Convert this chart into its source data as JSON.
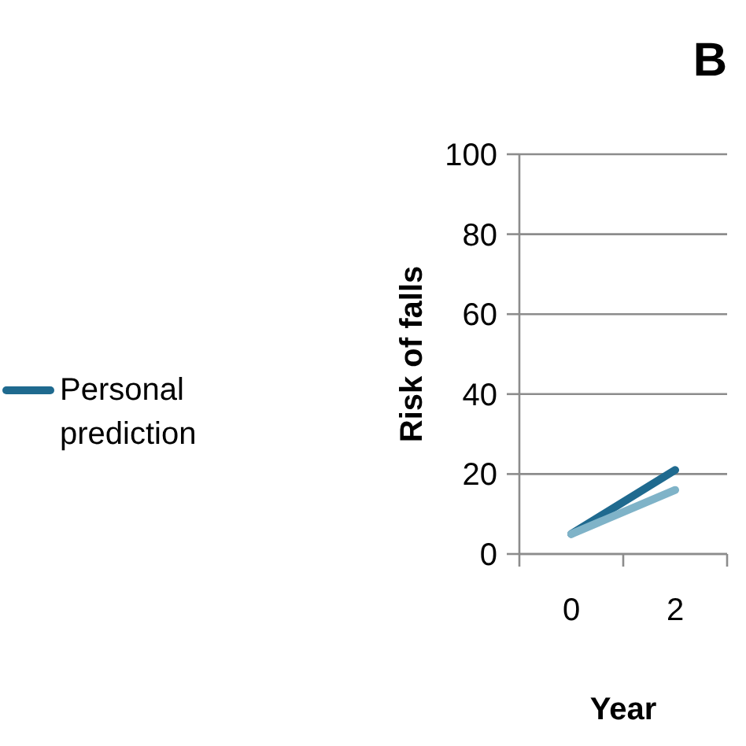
{
  "chart_data": {
    "type": "line",
    "title": "B",
    "xlabel": "Year",
    "ylabel": "Risk of falls",
    "categories": [
      "0",
      "2"
    ],
    "series": [
      {
        "name": "Personal prediction",
        "color": "#1f6a8f",
        "values": [
          5,
          21
        ]
      },
      {
        "color": "#7fb3c8",
        "values": [
          5,
          16
        ]
      }
    ],
    "ylim": [
      0,
      100
    ],
    "yticks": [
      0,
      20,
      40,
      60,
      80,
      100
    ],
    "grid": "y",
    "legend": "left",
    "marker": "none",
    "line_style": "solid"
  }
}
